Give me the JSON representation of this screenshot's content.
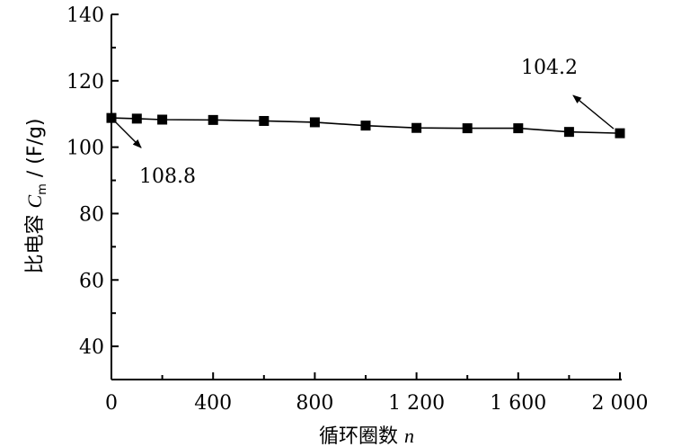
{
  "chart_data": {
    "type": "line",
    "xlabel": {
      "main": "循环圈数 ",
      "var": "n"
    },
    "ylabel": {
      "main": "比电容 ",
      "var": "C",
      "sub": "m",
      "unit": " / (F/g)"
    },
    "xlim": [
      0,
      2000
    ],
    "ylim": [
      30,
      140
    ],
    "xticks": [
      {
        "value": 0,
        "label": "0"
      },
      {
        "value": 400,
        "label": "400"
      },
      {
        "value": 800,
        "label": "800"
      },
      {
        "value": 1200,
        "label": "1 200"
      },
      {
        "value": 1600,
        "label": "1 600"
      },
      {
        "value": 2000,
        "label": "2 000"
      }
    ],
    "yticks": [
      {
        "value": 40,
        "label": "40"
      },
      {
        "value": 60,
        "label": "60"
      },
      {
        "value": 80,
        "label": "80"
      },
      {
        "value": 100,
        "label": "100"
      },
      {
        "value": 120,
        "label": "120"
      },
      {
        "value": 140,
        "label": "140"
      }
    ],
    "series": [
      {
        "marker": "square",
        "color": "#000000",
        "x": [
          0,
          100,
          200,
          400,
          600,
          800,
          1000,
          1200,
          1400,
          1600,
          1800,
          2000
        ],
        "y": [
          108.8,
          108.6,
          108.3,
          108.2,
          107.9,
          107.5,
          106.5,
          105.8,
          105.7,
          105.7,
          104.6,
          104.2
        ]
      }
    ],
    "annotations": [
      {
        "text": "108.8",
        "x": 0,
        "y": 108.8
      },
      {
        "text": "104.2",
        "x": 2000,
        "y": 104.2
      }
    ],
    "grid": false
  }
}
